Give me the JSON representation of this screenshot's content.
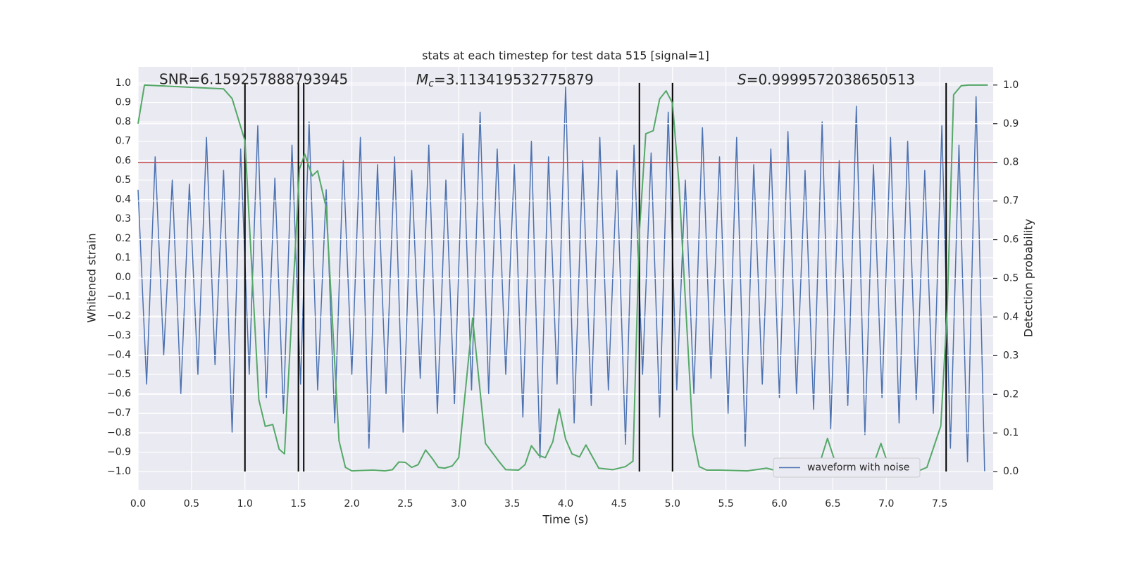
{
  "chart_data": {
    "type": "line",
    "title": "stats at each timestep for test data 515 [signal=1]",
    "xlabel": "Time (s)",
    "ylabel": "Whitened strain",
    "y2label": "Detection probability",
    "xlim": [
      0,
      8.0
    ],
    "ylim": [
      -1.094,
      1.083
    ],
    "y2lim": [
      -0.047,
      1.047
    ],
    "xticks": [
      {
        "value": 0,
        "label": "0.0"
      },
      0.5,
      {
        "value": 1,
        "label": "1.0"
      },
      1.5,
      {
        "value": 2,
        "label": "2.0"
      },
      2.5,
      {
        "value": 3,
        "label": "3.0"
      },
      3.5,
      {
        "value": 4,
        "label": "4.0"
      },
      4.5,
      {
        "value": 5,
        "label": "5.0"
      },
      5.5,
      {
        "value": 6,
        "label": "6.0"
      },
      6.5,
      {
        "value": 7,
        "label": "7.0"
      },
      7.5
    ],
    "yticks": [
      {
        "value": -1,
        "label": "−1.0"
      },
      {
        "value": -0.9,
        "label": "−0.9"
      },
      {
        "value": -0.8,
        "label": "−0.8"
      },
      {
        "value": -0.7,
        "label": "−0.7"
      },
      {
        "value": -0.6,
        "label": "−0.6"
      },
      {
        "value": -0.5,
        "label": "−0.5"
      },
      {
        "value": -0.4,
        "label": "−0.4"
      },
      {
        "value": -0.3,
        "label": "−0.3"
      },
      {
        "value": -0.2,
        "label": "−0.2"
      },
      {
        "value": -0.1,
        "label": "−0.1"
      },
      {
        "value": 0,
        "label": "0.0"
      },
      0.1,
      0.2,
      0.3,
      0.4,
      0.5,
      0.6,
      0.7,
      0.8,
      0.9,
      {
        "value": 1,
        "label": "1.0"
      }
    ],
    "y2ticks": [
      {
        "value": 0,
        "label": "0.0"
      },
      0.1,
      0.2,
      0.3,
      0.4,
      0.5,
      0.6,
      0.7,
      0.8,
      0.9,
      {
        "value": 1,
        "label": "1.0"
      }
    ],
    "grid": true,
    "legend": "lower right",
    "annotations": [
      "SNR=6.159257888793945",
      {
        "symbol": "M",
        "subscript": "c",
        "text": "=3.113419532775879"
      },
      {
        "symbol": "S",
        "text": "=0.9999572038650513"
      }
    ],
    "series": [
      {
        "name": "waveform with noise",
        "color": "#4c72b0",
        "x": [
          0,
          0.08,
          0.16,
          0.24,
          0.32,
          0.4,
          0.48,
          0.56,
          0.64,
          0.72,
          0.8,
          0.88,
          0.96,
          1.04,
          1.12,
          1.2,
          1.28,
          1.36,
          1.44,
          1.52,
          1.6,
          1.68,
          1.76,
          1.84,
          1.92,
          2,
          2.08,
          2.16,
          2.24,
          2.32,
          2.4,
          2.48,
          2.56,
          2.64,
          2.72,
          2.8,
          2.88,
          2.96,
          3.04,
          3.12,
          3.2,
          3.28,
          3.36,
          3.44,
          3.52,
          3.6,
          3.68,
          3.76,
          3.84,
          3.92,
          4,
          4.08,
          4.16,
          4.24,
          4.32,
          4.4,
          4.48,
          4.56,
          4.64,
          4.72,
          4.8,
          4.88,
          4.96,
          5.04,
          5.12,
          5.2,
          5.28,
          5.36,
          5.44,
          5.52,
          5.6,
          5.68,
          5.76,
          5.84,
          5.92,
          6,
          6.08,
          6.16,
          6.24,
          6.32,
          6.4,
          6.48,
          6.56,
          6.64,
          6.72,
          6.8,
          6.88,
          6.96,
          7.04,
          7.12,
          7.2,
          7.28,
          7.36,
          7.44,
          7.52,
          7.6,
          7.68,
          7.76,
          7.84,
          7.92
        ],
        "values": [
          0.45,
          -0.55,
          0.62,
          -0.4,
          0.5,
          -0.6,
          0.48,
          -0.5,
          0.72,
          -0.45,
          0.55,
          -0.8,
          0.66,
          -0.5,
          0.78,
          -0.62,
          0.51,
          -0.7,
          0.68,
          -0.55,
          0.8,
          -0.58,
          0.45,
          -0.75,
          0.6,
          -0.5,
          0.72,
          -0.88,
          0.58,
          -0.6,
          0.62,
          -0.8,
          0.55,
          -0.52,
          0.68,
          -0.7,
          0.5,
          -0.65,
          0.74,
          -0.58,
          0.85,
          -0.6,
          0.66,
          -0.5,
          0.58,
          -0.72,
          0.7,
          -0.93,
          0.62,
          -0.55,
          0.98,
          -0.75,
          0.6,
          -0.66,
          0.72,
          -0.58,
          0.55,
          -0.86,
          0.68,
          -0.5,
          0.64,
          -0.72,
          0.85,
          -0.58,
          0.5,
          -0.6,
          0.77,
          -0.52,
          0.62,
          -0.7,
          0.72,
          -0.87,
          0.58,
          -0.55,
          0.66,
          -0.62,
          0.75,
          -0.6,
          0.55,
          -0.68,
          0.8,
          -0.78,
          0.6,
          -0.66,
          0.88,
          -0.81,
          0.58,
          -0.62,
          0.72,
          -0.75,
          0.7,
          -0.63,
          0.55,
          -0.7,
          0.78,
          -0.88,
          0.68,
          -0.95,
          0.93,
          -1.0
        ]
      },
      {
        "color": "#55a868",
        "axis": "y2",
        "x": [
          0,
          0.06,
          0.8,
          0.88,
          1.0,
          1.13,
          1.19,
          1.26,
          1.32,
          1.37,
          1.51,
          1.56,
          1.63,
          1.68,
          1.76,
          1.88,
          1.94,
          2.0,
          2.2,
          2.31,
          2.38,
          2.44,
          2.5,
          2.56,
          2.62,
          2.69,
          2.75,
          2.81,
          2.87,
          2.94,
          3.0,
          3.13,
          3.25,
          3.38,
          3.44,
          3.56,
          3.62,
          3.68,
          3.75,
          3.81,
          3.88,
          3.94,
          4.0,
          4.06,
          4.13,
          4.19,
          4.31,
          4.44,
          4.56,
          4.63,
          4.69,
          4.75,
          4.82,
          4.88,
          4.94,
          5.0,
          5.06,
          5.19,
          5.25,
          5.32,
          5.44,
          5.7,
          5.88,
          5.95,
          6.07,
          6.13,
          6.2,
          6.26,
          6.32,
          6.38,
          6.45,
          6.51,
          6.57,
          6.63,
          6.7,
          6.76,
          6.82,
          6.88,
          6.95,
          7.01,
          7.07,
          7.2,
          7.32,
          7.38,
          7.51,
          7.57,
          7.63,
          7.7,
          7.77,
          7.95
        ],
        "values": [
          0.9,
          1.0,
          0.99,
          0.965,
          0.856,
          0.186,
          0.117,
          0.122,
          0.058,
          0.046,
          0.783,
          0.821,
          0.765,
          0.778,
          0.683,
          0.08,
          0.011,
          0.002,
          0.004,
          0.002,
          0.005,
          0.025,
          0.024,
          0.011,
          0.018,
          0.056,
          0.035,
          0.011,
          0.009,
          0.015,
          0.036,
          0.397,
          0.073,
          0.025,
          0.005,
          0.004,
          0.018,
          0.067,
          0.042,
          0.036,
          0.077,
          0.162,
          0.084,
          0.046,
          0.038,
          0.069,
          0.009,
          0.005,
          0.013,
          0.027,
          0.619,
          0.874,
          0.882,
          0.964,
          0.985,
          0.953,
          0.747,
          0.095,
          0.013,
          0.004,
          0.004,
          0.002,
          0.009,
          0.004,
          0.004,
          0.005,
          0.016,
          0.005,
          0.004,
          0.024,
          0.086,
          0.035,
          0.015,
          0.018,
          0.027,
          0.015,
          0.007,
          0.018,
          0.073,
          0.025,
          0.004,
          0.004,
          0.004,
          0.011,
          0.118,
          0.419,
          0.975,
          0.998,
          1.0,
          1.0
        ]
      }
    ],
    "vlines": {
      "x": [
        1.0,
        1.5,
        1.55,
        4.69,
        5.0,
        7.56
      ],
      "ymin": -1,
      "ymax": 1,
      "color": "#000000"
    },
    "threshold": {
      "value": 0.8,
      "axis": "y2",
      "color": "#c44e52"
    }
  }
}
